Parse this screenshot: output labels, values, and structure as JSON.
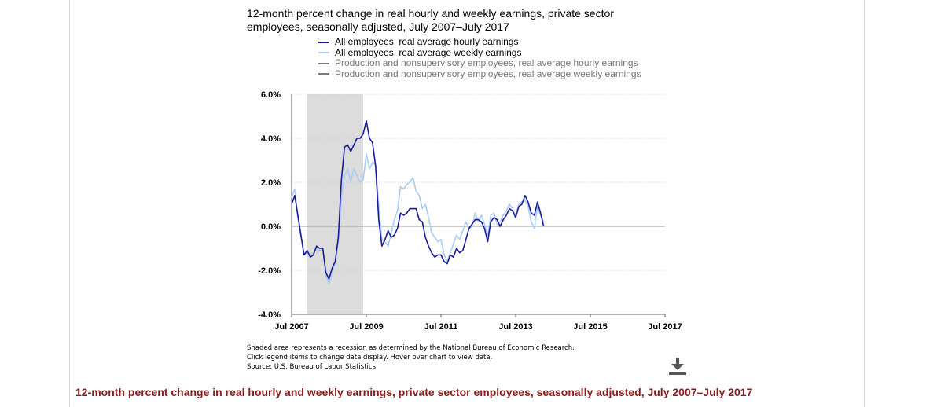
{
  "page": {
    "bottom_caption": "12-month percent change in real hourly and weekly earnings, private sector employees, seasonally adjusted, July 2007–July 2017"
  },
  "chart_data": {
    "type": "line",
    "title": "12-month percent change in real hourly and weekly earnings, private sector employees, seasonally adjusted, July 2007–July 2017",
    "x_tick_labels": [
      "Jul 2007",
      "Jul 2009",
      "Jul 2011",
      "Jul 2013",
      "Jul 2015",
      "Jul 2017"
    ],
    "y_tick_labels": [
      "6.0%",
      "4.0%",
      "2.0%",
      "0.0%",
      "-2.0%",
      "-4.0%"
    ],
    "ylim": [
      -4.0,
      6.0
    ],
    "x_start": "2007-07",
    "x_end": "2017-07",
    "grid": true,
    "legend_position": "top",
    "recession": {
      "start": "2007-12",
      "end": "2009-06",
      "color": "#dcdcdc"
    },
    "series": [
      {
        "name": "All employees, real average hourly earnings",
        "color": "#1a1a9c",
        "active": true,
        "values": [
          1.0,
          1.4,
          0.5,
          -0.4,
          -1.3,
          -1.1,
          -1.4,
          -1.3,
          -0.9,
          -1.0,
          -1.0,
          -2.1,
          -2.4,
          -1.9,
          -1.6,
          -0.5,
          2.1,
          3.6,
          3.7,
          3.4,
          3.7,
          4.0,
          4.0,
          4.2,
          4.8,
          4.0,
          3.8,
          2.7,
          0.3,
          -0.9,
          -0.6,
          -0.2,
          -0.5,
          -0.4,
          -0.1,
          0.6,
          0.5,
          0.6,
          0.8,
          0.8,
          0.8,
          0.3,
          0.2,
          -0.5,
          -0.9,
          -1.2,
          -1.4,
          -1.3,
          -1.3,
          -1.6,
          -1.7,
          -1.3,
          -1.4,
          -1.0,
          -1.2,
          -1.1,
          -0.6,
          -0.1,
          0.1,
          0.3,
          0.3,
          0.2,
          -0.1,
          -0.7,
          0.2,
          0.4,
          0.3,
          0.0,
          0.3,
          0.5,
          0.8,
          0.7,
          0.4,
          0.9,
          1.0,
          1.4,
          1.1,
          0.6,
          0.5,
          1.1,
          0.6,
          0.0
        ]
      },
      {
        "name": "All employees, real average weekly earnings",
        "color": "#a9cdf5",
        "active": true,
        "values": [
          1.3,
          1.7,
          0.4,
          -0.5,
          -1.3,
          -1.2,
          -1.3,
          -1.2,
          -1.0,
          -1.1,
          -1.0,
          -2.2,
          -2.6,
          -2.1,
          -1.7,
          -0.7,
          1.3,
          2.3,
          2.6,
          2.0,
          2.6,
          2.3,
          2.0,
          2.1,
          3.3,
          2.6,
          2.9,
          2.8,
          0.9,
          -0.6,
          -0.7,
          -0.9,
          -0.3,
          0.3,
          0.7,
          1.8,
          1.7,
          1.9,
          2.0,
          2.2,
          1.6,
          1.4,
          0.8,
          1.0,
          0.4,
          -0.3,
          -0.5,
          -0.7,
          -0.6,
          -1.3,
          -1.6,
          -1.2,
          -0.8,
          -0.4,
          -0.6,
          -0.2,
          0.2,
          -0.1,
          0.0,
          0.6,
          0.2,
          0.5,
          0.1,
          -0.4,
          0.5,
          0.6,
          0.1,
          0.2,
          0.5,
          0.7,
          1.0,
          0.8,
          0.5,
          1.0,
          1.1,
          1.2,
          0.9,
          0.2,
          -0.1,
          0.9,
          0.5,
          0.2
        ]
      },
      {
        "name": "Production and nonsupervisory employees, real average hourly earnings",
        "color": "#7a7a7a",
        "active": false,
        "values": []
      },
      {
        "name": "Production and nonsupervisory employees, real average weekly earnings",
        "color": "#7a7a7a",
        "active": false,
        "values": []
      }
    ],
    "notes": [
      "Shaded area represents a recession as determined by the National Bureau of Economic Research.",
      "Click legend items to change data display. Hover over chart to view data.",
      "Source: U.S. Bureau of Labor Statistics."
    ]
  }
}
